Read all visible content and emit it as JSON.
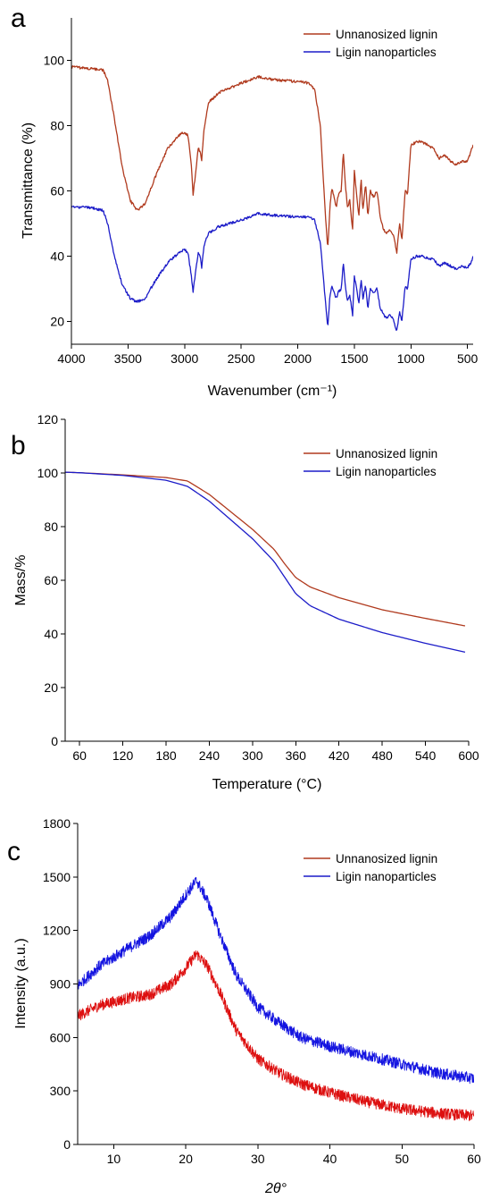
{
  "chart_data": [
    {
      "type": "line",
      "panel": "a",
      "xlabel": "Wavenumber (cm⁻¹)",
      "ylabel": "Transmittance (%)",
      "xlim": [
        4000,
        450
      ],
      "ylim": [
        13,
        113
      ],
      "x_reversed": true,
      "xticks": [
        4000,
        3500,
        3000,
        2500,
        2000,
        1500,
        1000,
        500
      ],
      "yticks": [
        20,
        40,
        60,
        80,
        100
      ],
      "legend_position": "top-right",
      "series": [
        {
          "name": "Unnanosized lignin",
          "color": "#b03a1e",
          "noise": 0.4,
          "points": [
            [
              4000,
              98
            ],
            [
              3850,
              97.5
            ],
            [
              3720,
              97
            ],
            [
              3680,
              94
            ],
            [
              3620,
              82
            ],
            [
              3550,
              67
            ],
            [
              3480,
              57
            ],
            [
              3420,
              54
            ],
            [
              3350,
              56
            ],
            [
              3250,
              65
            ],
            [
              3150,
              73
            ],
            [
              3050,
              77
            ],
            [
              3000,
              78
            ],
            [
              2970,
              77
            ],
            [
              2940,
              68
            ],
            [
              2925,
              59
            ],
            [
              2900,
              66
            ],
            [
              2880,
              73
            ],
            [
              2860,
              72
            ],
            [
              2850,
              69
            ],
            [
              2830,
              78
            ],
            [
              2790,
              87
            ],
            [
              2700,
              90
            ],
            [
              2500,
              93
            ],
            [
              2350,
              95
            ],
            [
              2200,
              94
            ],
            [
              2000,
              93.5
            ],
            [
              1900,
              93
            ],
            [
              1850,
              91
            ],
            [
              1800,
              80
            ],
            [
              1760,
              55
            ],
            [
              1735,
              42
            ],
            [
              1715,
              55
            ],
            [
              1700,
              61
            ],
            [
              1660,
              55
            ],
            [
              1640,
              59
            ],
            [
              1615,
              60
            ],
            [
              1598,
              72
            ],
            [
              1580,
              62
            ],
            [
              1560,
              55
            ],
            [
              1540,
              57
            ],
            [
              1515,
              48
            ],
            [
              1500,
              66
            ],
            [
              1480,
              59
            ],
            [
              1460,
              52
            ],
            [
              1440,
              64
            ],
            [
              1425,
              54
            ],
            [
              1400,
              62
            ],
            [
              1380,
              52
            ],
            [
              1360,
              60
            ],
            [
              1330,
              58
            ],
            [
              1300,
              60
            ],
            [
              1270,
              52
            ],
            [
              1240,
              48
            ],
            [
              1215,
              47
            ],
            [
              1180,
              48
            ],
            [
              1150,
              46
            ],
            [
              1125,
              41
            ],
            [
              1100,
              50
            ],
            [
              1080,
              45
            ],
            [
              1050,
              60
            ],
            [
              1030,
              59
            ],
            [
              1000,
              74
            ],
            [
              950,
              75
            ],
            [
              900,
              75
            ],
            [
              850,
              74
            ],
            [
              800,
              73
            ],
            [
              750,
              70
            ],
            [
              700,
              71
            ],
            [
              650,
              69
            ],
            [
              600,
              68
            ],
            [
              550,
              69
            ],
            [
              500,
              69
            ],
            [
              470,
              72
            ],
            [
              450,
              74
            ]
          ]
        },
        {
          "name": "Ligin nanoparticles",
          "color": "#1c1cc8",
          "noise": 0.4,
          "points": [
            [
              4000,
              55
            ],
            [
              3850,
              55
            ],
            [
              3720,
              54
            ],
            [
              3680,
              50
            ],
            [
              3620,
              40
            ],
            [
              3550,
              31
            ],
            [
              3480,
              27
            ],
            [
              3420,
              26
            ],
            [
              3350,
              27
            ],
            [
              3250,
              33
            ],
            [
              3150,
              38
            ],
            [
              3050,
              41
            ],
            [
              3000,
              42
            ],
            [
              2970,
              41
            ],
            [
              2940,
              34
            ],
            [
              2925,
              29
            ],
            [
              2900,
              36
            ],
            [
              2880,
              41
            ],
            [
              2860,
              40
            ],
            [
              2850,
              36
            ],
            [
              2830,
              43
            ],
            [
              2790,
              47
            ],
            [
              2700,
              49
            ],
            [
              2500,
              51
            ],
            [
              2350,
              53
            ],
            [
              2200,
              52.5
            ],
            [
              2000,
              52
            ],
            [
              1900,
              52
            ],
            [
              1850,
              51
            ],
            [
              1800,
              44
            ],
            [
              1760,
              28
            ],
            [
              1735,
              18
            ],
            [
              1715,
              28
            ],
            [
              1700,
              31
            ],
            [
              1660,
              27
            ],
            [
              1640,
              29
            ],
            [
              1615,
              30
            ],
            [
              1598,
              38
            ],
            [
              1580,
              31
            ],
            [
              1560,
              26
            ],
            [
              1540,
              28
            ],
            [
              1515,
              22
            ],
            [
              1500,
              34
            ],
            [
              1480,
              30
            ],
            [
              1460,
              25
            ],
            [
              1440,
              33
            ],
            [
              1425,
              27
            ],
            [
              1400,
              31
            ],
            [
              1380,
              24
            ],
            [
              1360,
              30
            ],
            [
              1330,
              29
            ],
            [
              1300,
              30
            ],
            [
              1270,
              24
            ],
            [
              1240,
              22
            ],
            [
              1215,
              21
            ],
            [
              1180,
              22
            ],
            [
              1150,
              20
            ],
            [
              1125,
              17
            ],
            [
              1100,
              23
            ],
            [
              1080,
              20
            ],
            [
              1050,
              31
            ],
            [
              1030,
              30
            ],
            [
              1000,
              39
            ],
            [
              950,
              40
            ],
            [
              900,
              40
            ],
            [
              850,
              39.5
            ],
            [
              800,
              39
            ],
            [
              750,
              37
            ],
            [
              700,
              38
            ],
            [
              650,
              37
            ],
            [
              600,
              36
            ],
            [
              550,
              37
            ],
            [
              500,
              36.5
            ],
            [
              470,
              38
            ],
            [
              450,
              40
            ]
          ]
        }
      ]
    },
    {
      "type": "line",
      "panel": "b",
      "xlabel": "Temperature (°C)",
      "ylabel": "Mass/%",
      "xlim": [
        40,
        600
      ],
      "ylim": [
        0,
        120
      ],
      "xticks": [
        60,
        120,
        180,
        240,
        300,
        360,
        420,
        480,
        540,
        600
      ],
      "yticks": [
        0,
        20,
        40,
        60,
        80,
        100,
        120
      ],
      "legend_position": "top-right",
      "series": [
        {
          "name": "Unnanosized lignin",
          "color": "#b03a1e",
          "noise": 0,
          "points": [
            [
              40,
              100.3
            ],
            [
              60,
              100.1
            ],
            [
              120,
              99.3
            ],
            [
              180,
              98.3
            ],
            [
              210,
              97
            ],
            [
              240,
              92
            ],
            [
              270,
              85.5
            ],
            [
              300,
              79
            ],
            [
              330,
              71.5
            ],
            [
              345,
              66
            ],
            [
              360,
              61
            ],
            [
              380,
              57.5
            ],
            [
              420,
              53.5
            ],
            [
              480,
              49
            ],
            [
              540,
              45.8
            ],
            [
              595,
              43
            ]
          ]
        },
        {
          "name": "Ligin nanoparticles",
          "color": "#1c1cc8",
          "noise": 0,
          "points": [
            [
              40,
              100.3
            ],
            [
              60,
              100.1
            ],
            [
              120,
              99.1
            ],
            [
              180,
              97.3
            ],
            [
              210,
              95
            ],
            [
              240,
              89.5
            ],
            [
              270,
              82.5
            ],
            [
              300,
              75.5
            ],
            [
              330,
              67
            ],
            [
              345,
              61
            ],
            [
              360,
              55
            ],
            [
              380,
              50.5
            ],
            [
              420,
              45.5
            ],
            [
              480,
              40.5
            ],
            [
              540,
              36.5
            ],
            [
              595,
              33.2
            ]
          ]
        }
      ]
    },
    {
      "type": "line",
      "panel": "c",
      "xlabel": "2θ°",
      "ylabel": "Intensity (a.u.)",
      "xlim": [
        5,
        60
      ],
      "ylim": [
        0,
        1800
      ],
      "xticks": [
        10,
        20,
        30,
        40,
        50,
        60
      ],
      "yticks": [
        0,
        300,
        600,
        900,
        1200,
        1500,
        1800
      ],
      "legend_position": "top-right",
      "series": [
        {
          "name": "Unnanosized lignin",
          "color": "#dd1010",
          "legend_color": "#b03a1e",
          "noise": 32,
          "points": [
            [
              5,
              720
            ],
            [
              8,
              780
            ],
            [
              12,
              820
            ],
            [
              15,
              840
            ],
            [
              18,
              900
            ],
            [
              20,
              990
            ],
            [
              21.5,
              1070
            ],
            [
              23,
              1000
            ],
            [
              25,
              830
            ],
            [
              27,
              640
            ],
            [
              30,
              480
            ],
            [
              33,
              400
            ],
            [
              36,
              340
            ],
            [
              40,
              290
            ],
            [
              45,
              240
            ],
            [
              50,
              200
            ],
            [
              55,
              175
            ],
            [
              60,
              160
            ]
          ]
        },
        {
          "name": "Ligin nanoparticles",
          "color": "#1414e0",
          "legend_color": "#1c1cc8",
          "noise": 32,
          "points": [
            [
              5,
              890
            ],
            [
              8,
              1000
            ],
            [
              12,
              1100
            ],
            [
              15,
              1170
            ],
            [
              18,
              1280
            ],
            [
              20,
              1400
            ],
            [
              21.5,
              1480
            ],
            [
              23,
              1370
            ],
            [
              25,
              1150
            ],
            [
              27,
              950
            ],
            [
              30,
              770
            ],
            [
              33,
              680
            ],
            [
              36,
              600
            ],
            [
              40,
              550
            ],
            [
              45,
              500
            ],
            [
              50,
              450
            ],
            [
              55,
              400
            ],
            [
              60,
              370
            ]
          ]
        }
      ]
    }
  ]
}
